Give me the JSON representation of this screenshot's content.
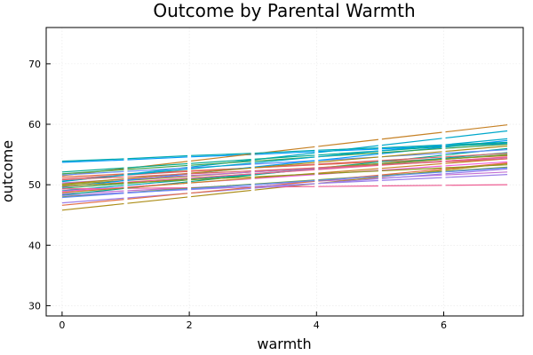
{
  "chart_data": {
    "type": "line",
    "title": "Outcome by Parental Warmth",
    "xlabel": "warmth",
    "ylabel": "outcome",
    "xlim": [
      -0.25,
      7.25
    ],
    "ylim": [
      28.3,
      76.0
    ],
    "xticks": [
      0,
      2,
      4,
      6
    ],
    "yticks": [
      30,
      40,
      50,
      60,
      70
    ],
    "grid": true,
    "legend": "none",
    "x": [
      0,
      1,
      2,
      3,
      4,
      5,
      6,
      7
    ],
    "series": [
      {
        "color": "#009AFA",
        "values": [
          53.7,
          54.1,
          54.6,
          55.0,
          55.5,
          55.9,
          56.4,
          56.8
        ]
      },
      {
        "color": "#E36F47",
        "values": [
          51.3,
          51.8,
          52.3,
          52.8,
          53.3,
          53.8,
          54.3,
          54.8
        ]
      },
      {
        "color": "#3EA44E",
        "values": [
          49.4,
          50.2,
          51.0,
          51.8,
          52.6,
          53.4,
          54.2,
          55.0
        ]
      },
      {
        "color": "#C371D2",
        "values": [
          48.5,
          49.0,
          49.5,
          50.0,
          50.6,
          51.1,
          51.6,
          52.1
        ]
      },
      {
        "color": "#AC8D18",
        "values": [
          45.8,
          46.9,
          48.0,
          49.1,
          50.2,
          51.3,
          52.4,
          53.5
        ]
      },
      {
        "color": "#00A9AD",
        "values": [
          49.0,
          49.9,
          50.8,
          51.7,
          52.6,
          53.5,
          54.4,
          55.3
        ]
      },
      {
        "color": "#ED5E93",
        "values": [
          49.3,
          49.4,
          49.5,
          49.6,
          49.7,
          49.8,
          49.9,
          50.0
        ]
      },
      {
        "color": "#C68125",
        "values": [
          51.5,
          52.7,
          53.9,
          55.1,
          56.3,
          57.5,
          58.7,
          59.9
        ]
      },
      {
        "color": "#00A98D",
        "values": [
          48.3,
          49.4,
          50.5,
          51.6,
          52.7,
          53.8,
          54.9,
          56.0
        ]
      },
      {
        "color": "#8E971E",
        "values": [
          50.0,
          50.7,
          51.4,
          52.1,
          52.8,
          53.5,
          54.2,
          54.9
        ]
      },
      {
        "color": "#00A8CB",
        "values": [
          50.5,
          51.7,
          52.9,
          54.1,
          55.3,
          56.5,
          57.7,
          58.9
        ]
      },
      {
        "color": "#9B7FE9",
        "values": [
          47.0,
          47.8,
          48.6,
          49.4,
          50.2,
          51.0,
          51.8,
          52.6
        ]
      },
      {
        "color": "#618DF6",
        "values": [
          51.6,
          52.2,
          52.8,
          53.4,
          54.0,
          54.6,
          55.2,
          55.8
        ]
      },
      {
        "color": "#F061DD",
        "values": [
          48.9,
          49.6,
          50.3,
          51.0,
          51.7,
          52.4,
          53.1,
          53.8
        ]
      },
      {
        "color": "#DD6469",
        "values": [
          51.0,
          51.6,
          52.2,
          52.8,
          53.4,
          54.0,
          54.6,
          55.2
        ]
      },
      {
        "color": "#6B9E32",
        "values": [
          48.0,
          48.7,
          49.4,
          50.1,
          50.8,
          51.5,
          52.2,
          52.9
        ]
      },
      {
        "color": "#009AFA",
        "values": [
          49.6,
          50.7,
          51.8,
          52.9,
          54.0,
          55.1,
          56.2,
          57.3
        ]
      },
      {
        "color": "#E36F47",
        "values": [
          46.6,
          47.6,
          48.6,
          49.6,
          50.6,
          51.6,
          52.6,
          53.6
        ]
      },
      {
        "color": "#3EA44E",
        "values": [
          51.8,
          52.5,
          53.2,
          53.9,
          54.6,
          55.3,
          56.0,
          56.7
        ]
      },
      {
        "color": "#C371D2",
        "values": [
          50.3,
          50.9,
          51.5,
          52.1,
          52.7,
          53.3,
          53.9,
          54.5
        ]
      },
      {
        "color": "#AC8D18",
        "values": [
          50.1,
          51.0,
          51.9,
          52.8,
          53.7,
          54.6,
          55.5,
          56.4
        ]
      },
      {
        "color": "#00A9AD",
        "values": [
          53.9,
          54.3,
          54.8,
          55.2,
          55.7,
          56.1,
          56.6,
          57.0
        ]
      },
      {
        "color": "#ED5E93",
        "values": [
          49.7,
          50.4,
          51.1,
          51.8,
          52.5,
          53.2,
          53.9,
          54.6
        ]
      },
      {
        "color": "#C68125",
        "values": [
          48.7,
          49.5,
          50.3,
          51.1,
          51.9,
          52.7,
          53.5,
          54.3
        ]
      },
      {
        "color": "#00A98D",
        "values": [
          52.1,
          52.8,
          53.5,
          54.2,
          54.9,
          55.6,
          56.3,
          57.0
        ]
      },
      {
        "color": "#8E971E",
        "values": [
          49.8,
          50.3,
          50.8,
          51.3,
          51.8,
          52.3,
          52.8,
          53.3
        ]
      },
      {
        "color": "#00A8CB",
        "values": [
          50.6,
          51.6,
          52.6,
          53.6,
          54.6,
          55.6,
          56.6,
          57.6
        ]
      },
      {
        "color": "#9B7FE9",
        "values": [
          48.2,
          48.7,
          49.2,
          49.7,
          50.2,
          50.7,
          51.2,
          51.7
        ]
      },
      {
        "color": "#618DF6",
        "values": [
          47.9,
          48.6,
          49.3,
          50.0,
          50.7,
          51.4,
          52.1,
          52.8
        ]
      },
      {
        "color": "#DD6469",
        "values": [
          50.8,
          51.3,
          51.8,
          52.3,
          52.8,
          53.3,
          53.8,
          54.3
        ]
      }
    ]
  }
}
